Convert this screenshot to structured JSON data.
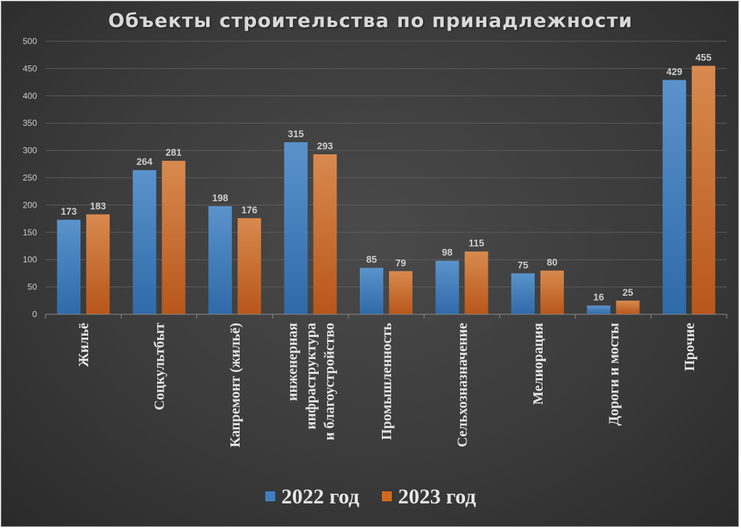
{
  "chart_data": {
    "type": "bar",
    "title": "Объекты строительства по принадлежности",
    "categories": [
      "Жильё",
      "Соцкультбыт",
      "Капремонт (жильё)",
      "инженерная инфраструктура и благоустройство",
      "Промышленность",
      "Сельхозназначение",
      "Мелиорация",
      "Дороги и мосты",
      "Прочие"
    ],
    "category_lines": [
      [
        "Жильё"
      ],
      [
        "Соцкультбыт"
      ],
      [
        "Капремонт (жильё)"
      ],
      [
        "инженерная",
        "инфраструктура",
        "и благоустройство"
      ],
      [
        "Промышленность"
      ],
      [
        "Сельхозназначение"
      ],
      [
        "Мелиорация"
      ],
      [
        "Дороги и мосты"
      ],
      [
        "Прочие"
      ]
    ],
    "series": [
      {
        "name": "2022 год",
        "values": [
          173,
          264,
          198,
          315,
          85,
          98,
          75,
          16,
          429
        ],
        "color": "#3f7fc0"
      },
      {
        "name": "2023 год",
        "values": [
          183,
          281,
          176,
          293,
          79,
          115,
          80,
          25,
          455
        ],
        "color": "#d2691e"
      }
    ],
    "ylim": [
      0,
      500
    ],
    "yticks": [
      0,
      50,
      100,
      150,
      200,
      250,
      300,
      350,
      400,
      450,
      500
    ],
    "grid": true,
    "legend_position": "bottom",
    "data_labels": true
  }
}
